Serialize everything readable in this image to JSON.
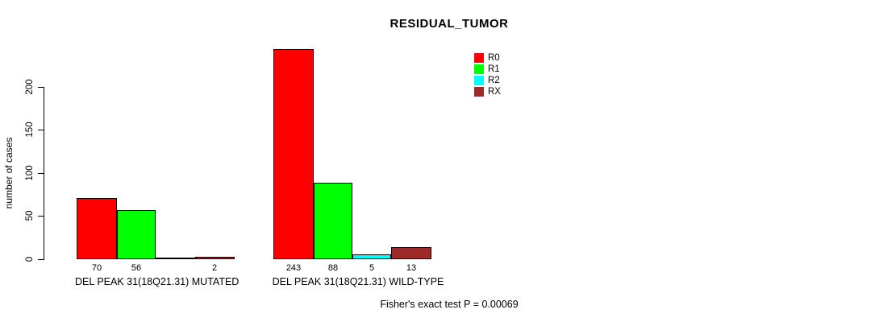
{
  "chart_data": {
    "type": "bar",
    "title": "RESIDUAL_TUMOR",
    "ylabel": "number of cases",
    "xlabel": "",
    "ylim": [
      0,
      243
    ],
    "yticks": [
      "0",
      "50",
      "100",
      "150",
      "200"
    ],
    "grid": false,
    "legend_position": "top-right",
    "categories": [
      "DEL PEAK 31(18Q21.31) MUTATED",
      "DEL PEAK 31(18Q21.31) WILD-TYPE"
    ],
    "series": [
      {
        "name": "R0",
        "color": "#FF0000",
        "values": [
          70,
          243
        ]
      },
      {
        "name": "R1",
        "color": "#00FF00",
        "values": [
          56,
          88
        ]
      },
      {
        "name": "R2",
        "color": "#00FFFF",
        "values": [
          0,
          5
        ]
      },
      {
        "name": "RX",
        "color": "#9E2929",
        "values": [
          2,
          13
        ]
      }
    ],
    "bar_value_labels": [
      [
        "70",
        "56",
        "",
        "2"
      ],
      [
        "243",
        "88",
        "5",
        "13"
      ]
    ],
    "footnote": "Fisher's exact test P = 0.00069"
  }
}
